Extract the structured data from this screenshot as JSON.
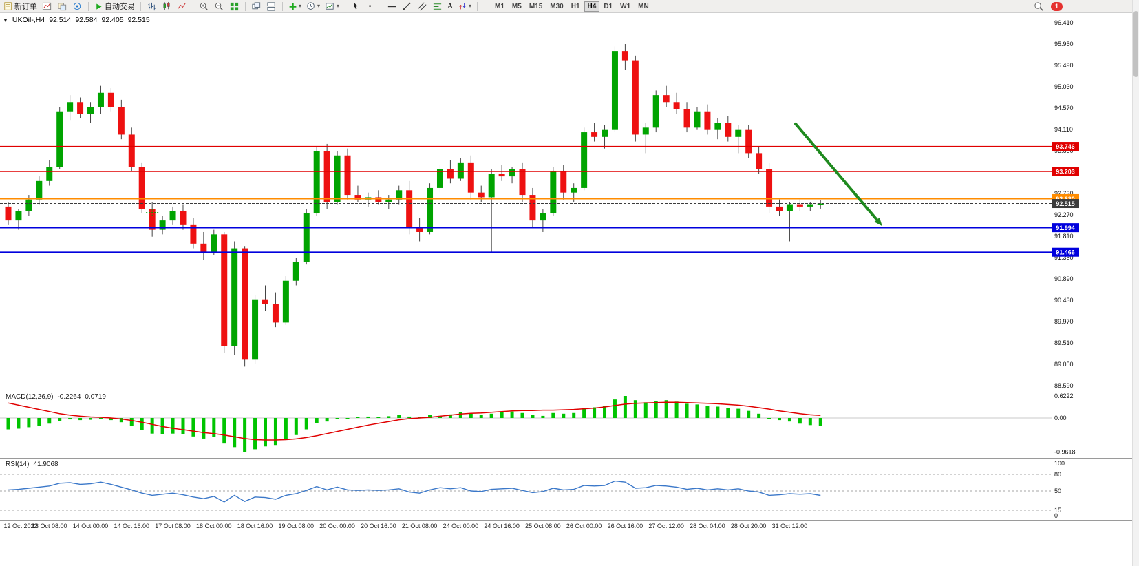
{
  "icons": {
    "caret": "▾",
    "collapse": "▼",
    "text_tool": "A"
  },
  "toolbar": {
    "new_order_label": "新订单",
    "autotrade_label": "自动交易",
    "timeframes": [
      "M1",
      "M5",
      "M15",
      "M30",
      "H1",
      "H4",
      "D1",
      "W1",
      "MN"
    ],
    "active_timeframe": "H4",
    "notification_count": "1"
  },
  "chart_data": {
    "type": "candlestick",
    "header": {
      "symbol_period": "UKOil-,H4",
      "open": "92.514",
      "high": "92.584",
      "low": "92.405",
      "close": "92.515"
    },
    "ylim": [
      88.59,
      96.41
    ],
    "y_ticks": [
      "96.410",
      "95.950",
      "95.490",
      "95.030",
      "94.570",
      "94.110",
      "93.650",
      "93.190",
      "92.730",
      "92.270",
      "91.810",
      "91.350",
      "90.890",
      "90.430",
      "89.970",
      "89.510",
      "89.050",
      "88.590"
    ],
    "x_labels": [
      "12 Oct 2022",
      "13 Oct 08:00",
      "14 Oct 00:00",
      "14 Oct 16:00",
      "17 Oct 08:00",
      "18 Oct 00:00",
      "18 Oct 16:00",
      "19 Oct 08:00",
      "20 Oct 00:00",
      "20 Oct 16:00",
      "21 Oct 08:00",
      "24 Oct 00:00",
      "24 Oct 16:00",
      "25 Oct 08:00",
      "26 Oct 00:00",
      "26 Oct 16:00",
      "27 Oct 12:00",
      "28 Oct 04:00",
      "28 Oct 20:00",
      "31 Oct 12:00"
    ],
    "hlines": [
      {
        "price": 93.746,
        "label": "93.746",
        "color": "#e00000",
        "width": 1.3,
        "dash": ""
      },
      {
        "price": 93.203,
        "label": "93.203",
        "color": "#e00000",
        "width": 1.3,
        "dash": ""
      },
      {
        "price": 92.62,
        "label": "92.620",
        "color": "#ff8c00",
        "width": 2,
        "dash": ""
      },
      {
        "price": 92.515,
        "label": "92.515",
        "color": "#3c3c3c",
        "width": 1,
        "dash": "4,2"
      },
      {
        "price": 91.994,
        "label": "91.994",
        "color": "#0000dd",
        "width": 1.6,
        "dash": ""
      },
      {
        "price": 91.466,
        "label": "91.466",
        "color": "#0000dd",
        "width": 1.6,
        "dash": ""
      }
    ],
    "arrow": {
      "from": {
        "bar": 76.5,
        "price": 94.25
      },
      "to": {
        "bar": 85.0,
        "price": 92.03
      },
      "color": "#1f8a1f"
    },
    "order_marker": {
      "bar": 14,
      "price": 92.32,
      "color": "#00a000"
    },
    "candles": [
      [
        92.45,
        92.55,
        92.05,
        92.15
      ],
      [
        92.15,
        92.4,
        91.95,
        92.35
      ],
      [
        92.35,
        92.7,
        92.25,
        92.6
      ],
      [
        92.6,
        93.1,
        92.5,
        93.0
      ],
      [
        93.0,
        93.45,
        92.9,
        93.3
      ],
      [
        93.3,
        94.6,
        93.25,
        94.5
      ],
      [
        94.5,
        94.85,
        94.3,
        94.7
      ],
      [
        94.7,
        94.8,
        94.35,
        94.45
      ],
      [
        94.45,
        94.7,
        94.25,
        94.6
      ],
      [
        94.6,
        95.05,
        94.45,
        94.9
      ],
      [
        94.9,
        95.0,
        94.5,
        94.6
      ],
      [
        94.6,
        94.75,
        93.9,
        94.0
      ],
      [
        94.0,
        94.15,
        93.2,
        93.3
      ],
      [
        93.3,
        93.4,
        92.3,
        92.4
      ],
      [
        92.4,
        92.55,
        91.8,
        91.95
      ],
      [
        91.95,
        92.25,
        91.85,
        92.15
      ],
      [
        92.15,
        92.45,
        92.05,
        92.35
      ],
      [
        92.35,
        92.5,
        91.95,
        92.05
      ],
      [
        92.05,
        92.2,
        91.55,
        91.65
      ],
      [
        91.65,
        91.9,
        91.3,
        91.45
      ],
      [
        91.45,
        91.95,
        91.4,
        91.85
      ],
      [
        91.85,
        91.9,
        89.3,
        89.45
      ],
      [
        89.45,
        91.7,
        89.25,
        91.55
      ],
      [
        91.55,
        91.6,
        89.0,
        89.15
      ],
      [
        89.15,
        90.55,
        89.05,
        90.45
      ],
      [
        90.45,
        90.75,
        90.2,
        90.35
      ],
      [
        90.35,
        90.6,
        89.85,
        89.95
      ],
      [
        89.95,
        90.95,
        89.9,
        90.85
      ],
      [
        90.85,
        91.35,
        90.75,
        91.25
      ],
      [
        91.25,
        92.4,
        91.2,
        92.3
      ],
      [
        92.3,
        93.75,
        92.25,
        93.65
      ],
      [
        93.65,
        93.8,
        92.4,
        92.55
      ],
      [
        92.55,
        93.65,
        92.5,
        93.55
      ],
      [
        93.55,
        93.7,
        92.6,
        92.7
      ],
      [
        92.7,
        92.9,
        92.55,
        92.6
      ],
      [
        92.6,
        92.75,
        92.45,
        92.65
      ],
      [
        92.65,
        92.8,
        92.5,
        92.55
      ],
      [
        92.55,
        92.7,
        92.4,
        92.6
      ],
      [
        92.6,
        92.9,
        92.5,
        92.8
      ],
      [
        92.8,
        93.0,
        91.85,
        92.0
      ],
      [
        92.0,
        92.2,
        91.7,
        91.9
      ],
      [
        91.9,
        92.95,
        91.85,
        92.85
      ],
      [
        92.85,
        93.35,
        92.75,
        93.25
      ],
      [
        93.25,
        93.45,
        92.95,
        93.05
      ],
      [
        93.05,
        93.5,
        93.0,
        93.4
      ],
      [
        93.4,
        93.55,
        92.6,
        92.75
      ],
      [
        92.75,
        92.9,
        92.55,
        92.65
      ],
      [
        92.65,
        93.25,
        91.45,
        93.15
      ],
      [
        93.15,
        93.35,
        93.0,
        93.1
      ],
      [
        93.1,
        93.3,
        92.95,
        93.25
      ],
      [
        93.25,
        93.4,
        92.55,
        92.7
      ],
      [
        92.7,
        92.85,
        92.0,
        92.15
      ],
      [
        92.15,
        92.4,
        91.9,
        92.3
      ],
      [
        92.3,
        93.3,
        92.25,
        93.2
      ],
      [
        93.2,
        93.35,
        92.6,
        92.75
      ],
      [
        92.75,
        92.95,
        92.55,
        92.85
      ],
      [
        92.85,
        94.15,
        92.8,
        94.05
      ],
      [
        94.05,
        94.25,
        93.85,
        93.95
      ],
      [
        93.95,
        94.2,
        93.7,
        94.1
      ],
      [
        94.1,
        95.9,
        94.05,
        95.8
      ],
      [
        95.8,
        95.95,
        95.4,
        95.6
      ],
      [
        95.6,
        95.7,
        93.85,
        94.0
      ],
      [
        94.0,
        94.25,
        93.6,
        94.15
      ],
      [
        94.15,
        94.95,
        94.05,
        94.85
      ],
      [
        94.85,
        95.05,
        94.6,
        94.7
      ],
      [
        94.7,
        94.9,
        94.45,
        94.55
      ],
      [
        94.55,
        94.7,
        94.05,
        94.15
      ],
      [
        94.15,
        94.6,
        94.1,
        94.5
      ],
      [
        94.5,
        94.65,
        94.0,
        94.1
      ],
      [
        94.1,
        94.35,
        93.9,
        94.25
      ],
      [
        94.25,
        94.4,
        93.85,
        93.95
      ],
      [
        93.95,
        94.2,
        93.6,
        94.1
      ],
      [
        94.1,
        94.2,
        93.5,
        93.6
      ],
      [
        93.6,
        93.75,
        93.15,
        93.25
      ],
      [
        93.25,
        93.4,
        92.3,
        92.45
      ],
      [
        92.45,
        92.6,
        92.25,
        92.35
      ],
      [
        92.35,
        92.55,
        91.7,
        92.5
      ],
      [
        92.5,
        92.6,
        92.35,
        92.45
      ],
      [
        92.45,
        92.55,
        92.35,
        92.5
      ],
      [
        92.514,
        92.584,
        92.405,
        92.515
      ]
    ],
    "indicators": {
      "macd": {
        "title": "MACD(12,26,9)",
        "value_main": "-0.2264",
        "value_signal": "0.0719",
        "axis": [
          "0.6222",
          "0.00",
          "-0.9618"
        ],
        "histogram": [
          -0.32,
          -0.3,
          -0.26,
          -0.22,
          -0.16,
          -0.08,
          -0.04,
          -0.06,
          -0.05,
          -0.02,
          -0.06,
          -0.12,
          -0.22,
          -0.34,
          -0.44,
          -0.46,
          -0.44,
          -0.46,
          -0.52,
          -0.58,
          -0.54,
          -0.72,
          -0.82,
          -0.96,
          -0.88,
          -0.8,
          -0.76,
          -0.62,
          -0.48,
          -0.32,
          -0.14,
          -0.1,
          -0.02,
          0.0,
          0.02,
          0.04,
          0.03,
          0.05,
          0.08,
          0.04,
          0.02,
          0.08,
          0.06,
          0.1,
          0.16,
          0.12,
          0.08,
          0.12,
          0.16,
          0.18,
          0.14,
          0.08,
          0.06,
          0.14,
          0.12,
          0.14,
          0.28,
          0.3,
          0.34,
          0.52,
          0.62,
          0.5,
          0.44,
          0.48,
          0.5,
          0.46,
          0.4,
          0.38,
          0.34,
          0.32,
          0.28,
          0.26,
          0.2,
          0.12,
          0.0,
          -0.06,
          -0.1,
          -0.16,
          -0.2,
          -0.2264
        ],
        "signal": [
          0.42,
          0.36,
          0.3,
          0.24,
          0.18,
          0.12,
          0.08,
          0.05,
          0.03,
          0.02,
          0.0,
          -0.03,
          -0.07,
          -0.12,
          -0.18,
          -0.24,
          -0.29,
          -0.33,
          -0.37,
          -0.41,
          -0.44,
          -0.48,
          -0.53,
          -0.58,
          -0.61,
          -0.62,
          -0.62,
          -0.61,
          -0.59,
          -0.55,
          -0.5,
          -0.44,
          -0.38,
          -0.32,
          -0.26,
          -0.2,
          -0.15,
          -0.1,
          -0.05,
          -0.02,
          0.0,
          0.02,
          0.05,
          0.08,
          0.11,
          0.13,
          0.14,
          0.16,
          0.18,
          0.2,
          0.21,
          0.21,
          0.22,
          0.22,
          0.23,
          0.24,
          0.26,
          0.28,
          0.31,
          0.35,
          0.39,
          0.41,
          0.42,
          0.43,
          0.44,
          0.44,
          0.43,
          0.42,
          0.41,
          0.4,
          0.38,
          0.36,
          0.33,
          0.29,
          0.25,
          0.2,
          0.16,
          0.12,
          0.09,
          0.0719
        ]
      },
      "rsi": {
        "title": "RSI(14)",
        "value": "41.9068",
        "levels": [
          100,
          80,
          50,
          15,
          0
        ],
        "dashed_levels": [
          80,
          50,
          15
        ],
        "values": [
          52,
          53,
          55,
          57,
          59,
          64,
          65,
          62,
          63,
          66,
          62,
          57,
          52,
          46,
          42,
          44,
          46,
          43,
          39,
          36,
          40,
          30,
          42,
          31,
          39,
          38,
          35,
          42,
          45,
          51,
          58,
          52,
          57,
          52,
          51,
          52,
          51,
          52,
          54,
          48,
          46,
          52,
          56,
          54,
          56,
          50,
          49,
          53,
          54,
          55,
          51,
          47,
          49,
          55,
          52,
          53,
          60,
          59,
          60,
          68,
          66,
          55,
          56,
          60,
          59,
          57,
          53,
          55,
          52,
          54,
          52,
          54,
          50,
          48,
          42,
          43,
          45,
          44,
          45,
          41.9
        ]
      }
    },
    "colors": {
      "candle_up": "#00a400",
      "candle_down": "#ee1111",
      "wick": "#444444",
      "macd_hist": "#00c400",
      "macd_signal": "#e00000",
      "rsi_line": "#3b78c9",
      "divider": "#9a9a9a"
    }
  }
}
